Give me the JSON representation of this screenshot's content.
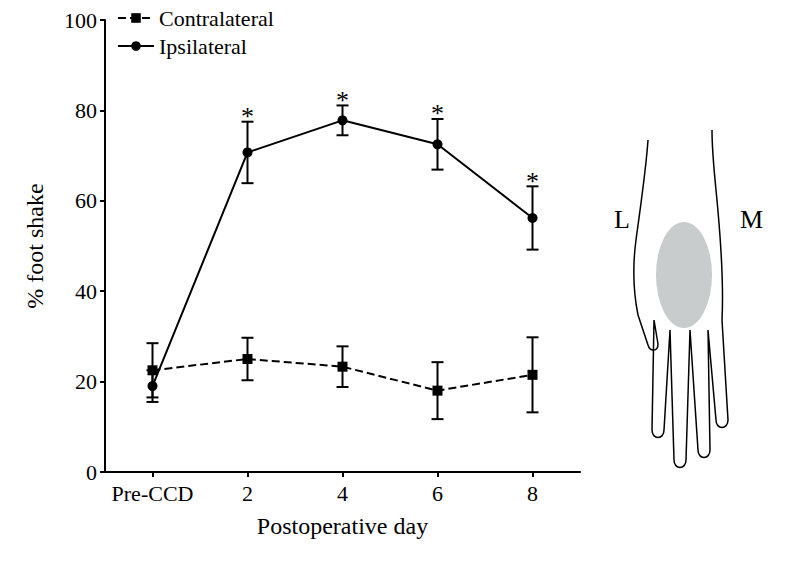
{
  "chart_data": {
    "type": "line",
    "x_label": "Postoperative day",
    "y_label": "% foot shake",
    "categories": [
      "Pre-CCD",
      "2",
      "4",
      "6",
      "8"
    ],
    "series": [
      {
        "name": "Contralateral",
        "color": "#000000",
        "marker": "square",
        "line_style": "dashed",
        "values": [
          22.5,
          25,
          23.3,
          18,
          21.5
        ],
        "errors": [
          6,
          4.7,
          4.5,
          6.3,
          8.3
        ]
      },
      {
        "name": "Ipsilateral",
        "color": "#000000",
        "marker": "circle",
        "line_style": "solid",
        "values": [
          19,
          70.7,
          77.8,
          72.5,
          56.2
        ],
        "errors": [
          3.5,
          6.8,
          3.3,
          5.6,
          7
        ]
      }
    ],
    "annotations": [
      {
        "series": "Ipsilateral",
        "x": "2",
        "text": "*"
      },
      {
        "series": "Ipsilateral",
        "x": "4",
        "text": "*"
      },
      {
        "series": "Ipsilateral",
        "x": "6",
        "text": "*"
      },
      {
        "series": "Ipsilateral",
        "x": "8",
        "text": "*"
      }
    ],
    "inset_labels": {
      "left": "L",
      "right": "M"
    },
    "ylim": [
      0,
      100
    ],
    "yticks": [
      0,
      20,
      40,
      60,
      80,
      100
    ],
    "grid": false,
    "legend": "upper left"
  }
}
